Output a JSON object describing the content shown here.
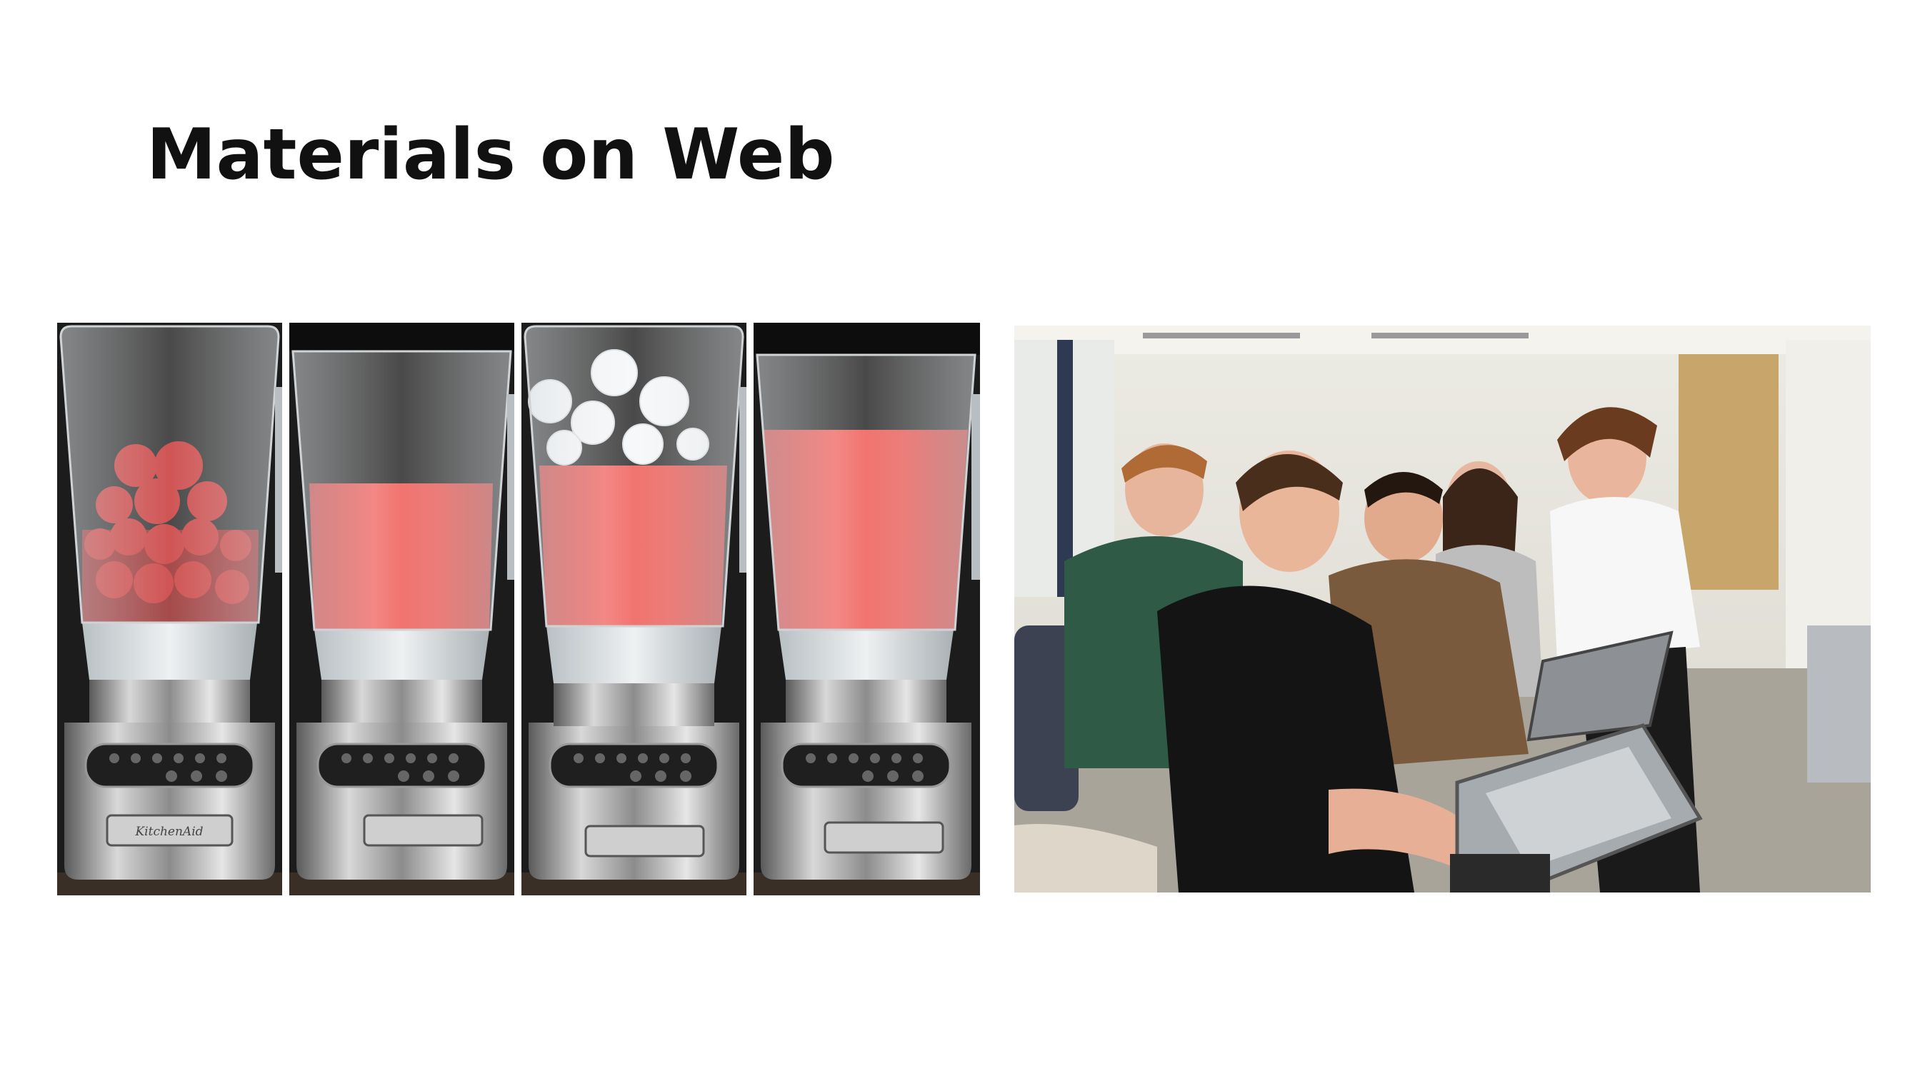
{
  "slide": {
    "title": "Materials on Web"
  },
  "images": {
    "blender_strip": {
      "description_icon": "blender-sequence-photo",
      "panels": [
        {
          "content": "frozen-strawberries"
        },
        {
          "content": "red-smoothie"
        },
        {
          "content": "smoothie-with-ice"
        },
        {
          "content": "blended-smoothie"
        }
      ],
      "brand_label": "KitchenAid",
      "colors": {
        "smoothie": "#e8453f",
        "backdrop": "#1c1c1c",
        "steel": "#9a9a9a"
      }
    },
    "classroom_photo": {
      "description_icon": "students-with-tablets-photo",
      "colors": {
        "wall": "#e4e2da",
        "floor": "#a9a49a",
        "door": "#c8a56b"
      }
    }
  }
}
